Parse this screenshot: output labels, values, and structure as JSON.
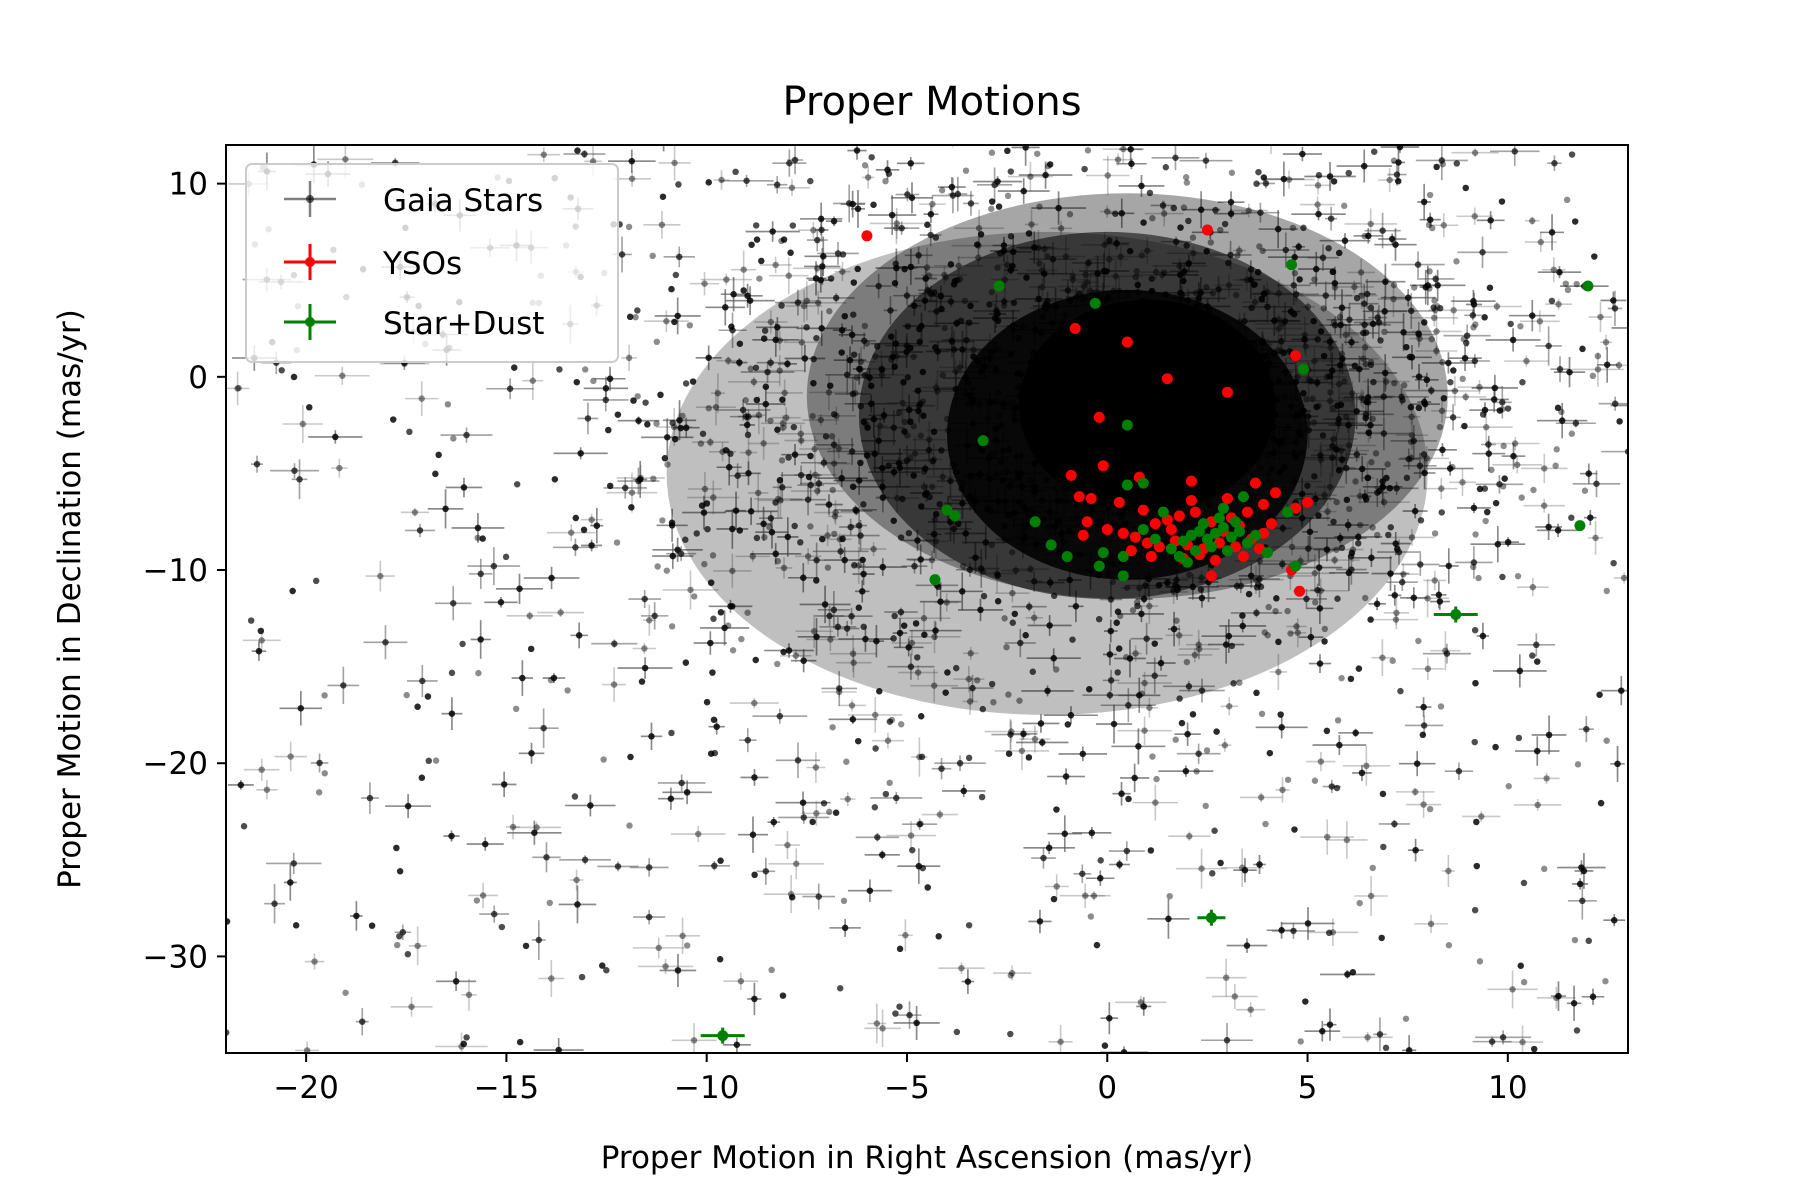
{
  "chart_data": {
    "type": "scatter",
    "title": "Proper Motions",
    "xlabel": "Proper Motion in Right Ascension (mas/yr)",
    "ylabel": "Proper Motion in Declination (mas/yr)",
    "xlim": [
      -22,
      13
    ],
    "ylim": [
      -35,
      12
    ],
    "xticks": [
      -20,
      -15,
      -10,
      -5,
      0,
      5,
      10
    ],
    "xtick_labels": [
      "−20",
      "−15",
      "−10",
      "−5",
      "0",
      "5",
      "10"
    ],
    "yticks": [
      10,
      0,
      -10,
      -20,
      -30
    ],
    "ytick_labels": [
      "10",
      "0",
      "−10",
      "−20",
      "−30"
    ],
    "grid": false,
    "legend_position": "upper-left",
    "series": [
      {
        "name": "Gaia Stars",
        "color": "#000000",
        "marker": "point with error bars",
        "distribution": {
          "center": [
            0,
            -2
          ],
          "dense_core_sigma": [
            5,
            6
          ],
          "note": "tens of thousands of points filling the plot, densest around the centre"
        }
      },
      {
        "name": "YSOs",
        "color": "#ff0000",
        "marker": "point with error bars",
        "points": [
          [
            -6.0,
            7.3
          ],
          [
            2.5,
            7.6
          ],
          [
            -0.8,
            2.5
          ],
          [
            0.5,
            1.8
          ],
          [
            1.5,
            -0.1
          ],
          [
            3.0,
            -0.8
          ],
          [
            -0.2,
            -2.1
          ],
          [
            -0.1,
            -4.6
          ],
          [
            -0.9,
            -5.1
          ],
          [
            0.8,
            -5.2
          ],
          [
            2.1,
            -5.4
          ],
          [
            3.7,
            -5.5
          ],
          [
            4.2,
            -6.0
          ],
          [
            5.0,
            -6.5
          ],
          [
            4.7,
            -6.8
          ],
          [
            -0.7,
            -6.2
          ],
          [
            -0.4,
            -6.3
          ],
          [
            0.3,
            -6.5
          ],
          [
            0.9,
            -6.9
          ],
          [
            1.5,
            -7.4
          ],
          [
            1.8,
            -7.2
          ],
          [
            2.2,
            -7.0
          ],
          [
            2.6,
            -7.5
          ],
          [
            3.1,
            -7.3
          ],
          [
            3.5,
            -7.0
          ],
          [
            3.9,
            -6.6
          ],
          [
            4.1,
            -7.6
          ],
          [
            -0.5,
            -7.5
          ],
          [
            0.0,
            -7.9
          ],
          [
            0.4,
            -8.1
          ],
          [
            0.7,
            -8.3
          ],
          [
            1.0,
            -8.6
          ],
          [
            1.3,
            -8.8
          ],
          [
            1.7,
            -8.5
          ],
          [
            2.0,
            -8.7
          ],
          [
            2.4,
            -8.9
          ],
          [
            2.8,
            -8.6
          ],
          [
            3.2,
            -8.8
          ],
          [
            3.6,
            -8.4
          ],
          [
            3.9,
            -8.1
          ],
          [
            0.6,
            -9.0
          ],
          [
            1.1,
            -9.3
          ],
          [
            1.9,
            -9.4
          ],
          [
            2.3,
            -9.2
          ],
          [
            2.7,
            -9.5
          ],
          [
            3.4,
            -9.3
          ],
          [
            3.8,
            -8.9
          ],
          [
            2.6,
            -10.3
          ],
          [
            4.6,
            -10.0
          ],
          [
            4.8,
            -11.1
          ],
          [
            4.7,
            1.1
          ],
          [
            -0.6,
            -8.2
          ],
          [
            1.6,
            -7.9
          ],
          [
            2.9,
            -8.0
          ],
          [
            3.3,
            -7.7
          ],
          [
            1.2,
            -7.6
          ],
          [
            2.1,
            -6.4
          ],
          [
            3.0,
            -6.3
          ]
        ]
      },
      {
        "name": "Star+Dust",
        "color": "#008000",
        "marker": "point with error bars",
        "points": [
          [
            -2.7,
            4.7
          ],
          [
            -0.3,
            3.8
          ],
          [
            4.6,
            5.8
          ],
          [
            12.0,
            4.7
          ],
          [
            4.9,
            0.4
          ],
          [
            0.5,
            -2.5
          ],
          [
            -3.1,
            -3.3
          ],
          [
            0.5,
            -5.6
          ],
          [
            0.9,
            -5.5
          ],
          [
            -4.0,
            -6.9
          ],
          [
            -3.8,
            -7.2
          ],
          [
            -1.8,
            -7.5
          ],
          [
            -1.4,
            -8.7
          ],
          [
            -1.0,
            -9.3
          ],
          [
            -0.1,
            -9.1
          ],
          [
            -0.2,
            -9.8
          ],
          [
            0.4,
            -10.3
          ],
          [
            0.4,
            -9.3
          ],
          [
            -4.3,
            -10.5
          ],
          [
            4.7,
            -9.8
          ],
          [
            8.7,
            -12.3
          ],
          [
            11.8,
            -7.7
          ],
          [
            2.6,
            -28.0
          ],
          [
            -9.6,
            -34.1
          ],
          [
            4.5,
            -7.0
          ],
          [
            1.4,
            -7.0
          ],
          [
            1.6,
            -8.9
          ],
          [
            1.9,
            -8.5
          ],
          [
            2.1,
            -8.2
          ],
          [
            2.3,
            -8.0
          ],
          [
            2.5,
            -8.4
          ],
          [
            2.7,
            -8.1
          ],
          [
            2.9,
            -7.8
          ],
          [
            3.1,
            -8.3
          ],
          [
            3.3,
            -8.0
          ],
          [
            3.5,
            -8.6
          ],
          [
            2.2,
            -9.0
          ],
          [
            2.6,
            -8.8
          ],
          [
            3.0,
            -9.0
          ],
          [
            1.8,
            -9.3
          ],
          [
            2.4,
            -7.6
          ],
          [
            2.8,
            -7.3
          ],
          [
            3.2,
            -7.5
          ],
          [
            2.0,
            -9.6
          ],
          [
            3.7,
            -8.2
          ],
          [
            1.2,
            -8.4
          ],
          [
            0.9,
            -7.9
          ],
          [
            2.9,
            -6.8
          ],
          [
            4.0,
            -9.1
          ],
          [
            3.4,
            -6.2
          ]
        ]
      }
    ]
  }
}
